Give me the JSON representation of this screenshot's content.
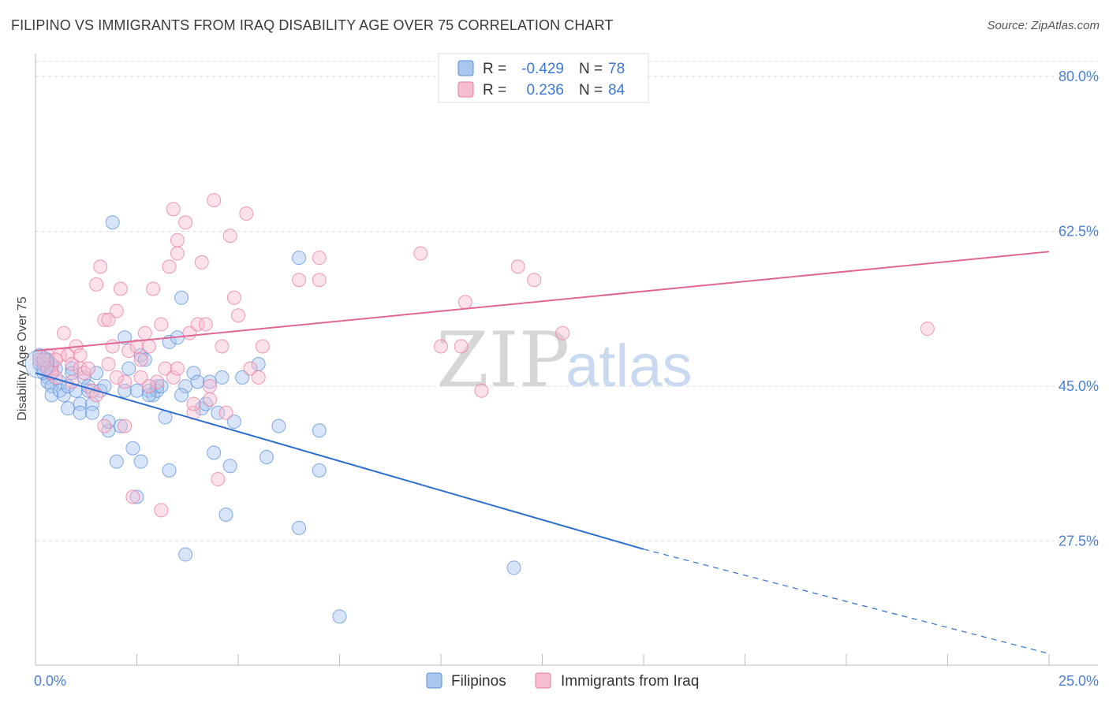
{
  "title": "FILIPINO VS IMMIGRANTS FROM IRAQ DISABILITY AGE OVER 75 CORRELATION CHART",
  "source": "Source: ZipAtlas.com",
  "watermark": {
    "zip": "ZIP",
    "atlas": "atlas"
  },
  "colors": {
    "blue": "#5b8fd9",
    "blue_fill": "#a9c6ef",
    "blue_line": "#2f6fcf",
    "pink": "#e97aa0",
    "pink_fill": "#f6bcd0",
    "pink_line": "#e06794",
    "grid": "#dddddd",
    "tick_text": "#4a7fd4"
  },
  "legend_top": {
    "rows": [
      {
        "r_label": "R =",
        "r_value": "-0.429",
        "n_label": "N =",
        "n_value": "78",
        "color": "blue"
      },
      {
        "r_label": "R =",
        "r_value": "0.236",
        "n_label": "N =",
        "n_value": "84",
        "color": "pink"
      }
    ]
  },
  "legend_bottom": [
    {
      "label": "Filipinos",
      "color": "blue"
    },
    {
      "label": "Immigrants from Iraq",
      "color": "pink"
    }
  ],
  "chart_data": {
    "type": "scatter",
    "ylabel": "Disability Age Over 75",
    "xlabel": "",
    "x_tick_labels": [
      "0.0%",
      "25.0%"
    ],
    "y_tick_labels": [
      "80.0%",
      "62.5%",
      "45.0%",
      "27.5%"
    ],
    "y_ticks": [
      80.0,
      62.5,
      45.0,
      27.5
    ],
    "xlim": [
      0,
      25
    ],
    "ylim": [
      13.5,
      81.5
    ],
    "grid": true,
    "series": [
      {
        "name": "Filipinos",
        "color": "blue",
        "points": [
          [
            0.1,
            48.5
          ],
          [
            0.1,
            47.5
          ],
          [
            0.2,
            47
          ],
          [
            0.3,
            46
          ],
          [
            0.3,
            45.5
          ],
          [
            0.4,
            45
          ],
          [
            0.4,
            44
          ],
          [
            0.5,
            47
          ],
          [
            0.6,
            45.5
          ],
          [
            0.6,
            44.5
          ],
          [
            0.7,
            44
          ],
          [
            0.8,
            45
          ],
          [
            0.8,
            42.5
          ],
          [
            0.9,
            47
          ],
          [
            1.0,
            44.5
          ],
          [
            1.1,
            43
          ],
          [
            1.1,
            42
          ],
          [
            1.2,
            46
          ],
          [
            1.3,
            44.5
          ],
          [
            1.4,
            43
          ],
          [
            1.4,
            42
          ],
          [
            1.5,
            46.5
          ],
          [
            1.6,
            44.5
          ],
          [
            1.7,
            45
          ],
          [
            1.8,
            40
          ],
          [
            2.0,
            36.5
          ],
          [
            2.1,
            40.5
          ],
          [
            2.2,
            44.5
          ],
          [
            2.2,
            50.5
          ],
          [
            2.3,
            47
          ],
          [
            2.4,
            38
          ],
          [
            2.5,
            44.5
          ],
          [
            2.6,
            36.5
          ],
          [
            2.6,
            48.5
          ],
          [
            2.7,
            48
          ],
          [
            2.8,
            44.5
          ],
          [
            2.9,
            44
          ],
          [
            3.0,
            45
          ],
          [
            3.0,
            44.5
          ],
          [
            3.1,
            45
          ],
          [
            3.2,
            41.5
          ],
          [
            3.3,
            35.5
          ],
          [
            3.3,
            50
          ],
          [
            3.5,
            50.5
          ],
          [
            3.6,
            55
          ],
          [
            3.7,
            45
          ],
          [
            3.9,
            46.5
          ],
          [
            4.0,
            45.5
          ],
          [
            4.1,
            42.5
          ],
          [
            4.2,
            43
          ],
          [
            4.3,
            45.5
          ],
          [
            4.4,
            37.5
          ],
          [
            4.6,
            46
          ],
          [
            4.7,
            30.5
          ],
          [
            4.8,
            36
          ],
          [
            4.9,
            41
          ],
          [
            5.1,
            46
          ],
          [
            5.5,
            47.5
          ],
          [
            5.7,
            37
          ],
          [
            6.0,
            40.5
          ],
          [
            6.5,
            59.5
          ],
          [
            6.5,
            29
          ],
          [
            7.0,
            40
          ],
          [
            7.0,
            35.5
          ],
          [
            7.5,
            19
          ],
          [
            1.9,
            63.5
          ],
          [
            2.5,
            32.5
          ],
          [
            3.7,
            26
          ],
          [
            11.8,
            24.5
          ],
          [
            0.9,
            46.5
          ],
          [
            1.3,
            45
          ],
          [
            2.8,
            44
          ],
          [
            3.6,
            44
          ],
          [
            0.2,
            46.5
          ],
          [
            0.4,
            47.5
          ],
          [
            0.3,
            48
          ],
          [
            1.8,
            41
          ],
          [
            4.5,
            42
          ]
        ]
      },
      {
        "name": "Immigrants from Iraq",
        "color": "pink",
        "points": [
          [
            0.1,
            48
          ],
          [
            0.2,
            47.5
          ],
          [
            0.3,
            48.5
          ],
          [
            0.4,
            47
          ],
          [
            0.5,
            46
          ],
          [
            0.6,
            48.5
          ],
          [
            0.7,
            51
          ],
          [
            0.8,
            48.5
          ],
          [
            0.9,
            47.5
          ],
          [
            1.0,
            49.5
          ],
          [
            1.1,
            47
          ],
          [
            1.2,
            46.5
          ],
          [
            1.4,
            44.5
          ],
          [
            1.5,
            56.5
          ],
          [
            1.6,
            58.5
          ],
          [
            1.7,
            52.5
          ],
          [
            1.8,
            52.5
          ],
          [
            1.9,
            49.5
          ],
          [
            2.0,
            53.5
          ],
          [
            2.1,
            56
          ],
          [
            2.2,
            45.5
          ],
          [
            2.3,
            49
          ],
          [
            2.5,
            49.5
          ],
          [
            2.6,
            46
          ],
          [
            2.7,
            51
          ],
          [
            2.8,
            49.5
          ],
          [
            2.9,
            56
          ],
          [
            3.0,
            45.5
          ],
          [
            3.1,
            52
          ],
          [
            3.2,
            47
          ],
          [
            3.3,
            58.5
          ],
          [
            3.4,
            65
          ],
          [
            3.5,
            61.5
          ],
          [
            3.5,
            60
          ],
          [
            3.7,
            63.5
          ],
          [
            3.8,
            51
          ],
          [
            3.9,
            42
          ],
          [
            4.0,
            52
          ],
          [
            4.1,
            59
          ],
          [
            4.2,
            52
          ],
          [
            4.3,
            45
          ],
          [
            4.4,
            66
          ],
          [
            4.5,
            34.5
          ],
          [
            4.6,
            49.5
          ],
          [
            4.7,
            42
          ],
          [
            4.8,
            62
          ],
          [
            4.9,
            55
          ],
          [
            5.0,
            53
          ],
          [
            5.2,
            64.5
          ],
          [
            5.3,
            47
          ],
          [
            5.5,
            46
          ],
          [
            5.6,
            49.5
          ],
          [
            6.5,
            57
          ],
          [
            7.0,
            57
          ],
          [
            7.0,
            59.5
          ],
          [
            9.5,
            60
          ],
          [
            10.0,
            49.5
          ],
          [
            10.5,
            49.5
          ],
          [
            10.6,
            54.5
          ],
          [
            11.0,
            44.5
          ],
          [
            11.9,
            58.5
          ],
          [
            12.3,
            57
          ],
          [
            13.0,
            51
          ],
          [
            22.0,
            51.5
          ],
          [
            1.3,
            47
          ],
          [
            1.7,
            40.5
          ],
          [
            2.2,
            40.5
          ],
          [
            2.4,
            32.5
          ],
          [
            3.1,
            31
          ],
          [
            0.3,
            47
          ],
          [
            0.5,
            48
          ],
          [
            0.9,
            45.5
          ],
          [
            1.5,
            44
          ],
          [
            2.0,
            46
          ],
          [
            2.6,
            48
          ],
          [
            3.4,
            46
          ],
          [
            3.9,
            43
          ],
          [
            4.3,
            43.5
          ],
          [
            0.2,
            48
          ],
          [
            0.4,
            46.5
          ],
          [
            1.1,
            48.5
          ],
          [
            1.8,
            47.5
          ],
          [
            2.8,
            45
          ],
          [
            3.5,
            47
          ]
        ]
      }
    ],
    "trend_lines": [
      {
        "series": "Filipinos",
        "x_start": 0,
        "y_start": 46.5,
        "x_solid_end": 15,
        "y_solid_end": 26.6,
        "x_dash_end": 25,
        "y_dash_end": 14.8
      },
      {
        "series": "Immigrants from Iraq",
        "x_start": 0,
        "y_start": 49.0,
        "x_end": 25,
        "y_end": 60.2
      }
    ]
  }
}
